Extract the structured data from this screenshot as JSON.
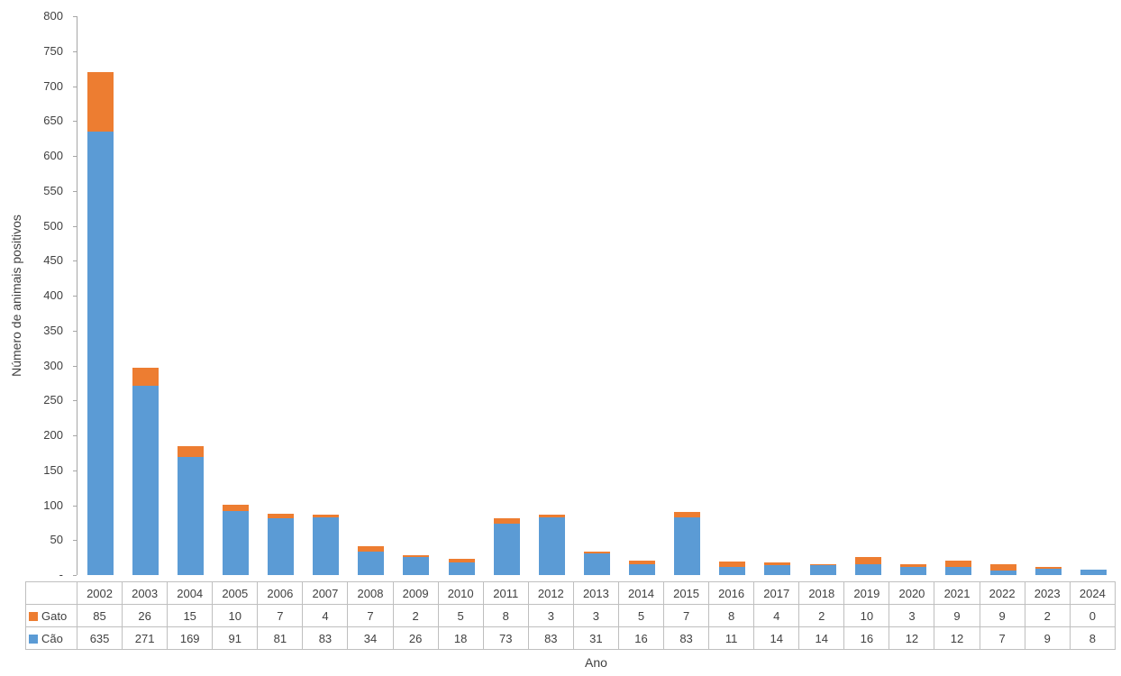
{
  "chart_data": {
    "type": "bar",
    "stacked": true,
    "title": "",
    "xlabel": "Ano",
    "ylabel": "Número de animais positivos",
    "ylim": [
      0,
      800
    ],
    "ytick_step": 50,
    "ytick_labels": [
      "800",
      "750",
      "700",
      "650",
      "600",
      "550",
      "500",
      "450",
      "400",
      "350",
      "300",
      "250",
      "200",
      "150",
      "100",
      "50",
      "-"
    ],
    "grid": false,
    "legend_position": "table-left",
    "categories": [
      "2002",
      "2003",
      "2004",
      "2005",
      "2006",
      "2007",
      "2008",
      "2009",
      "2010",
      "2011",
      "2012",
      "2013",
      "2014",
      "2015",
      "2016",
      "2017",
      "2018",
      "2019",
      "2020",
      "2021",
      "2022",
      "2023",
      "2024"
    ],
    "series": [
      {
        "name": "Gato",
        "color": "#ED7D31",
        "values": [
          85,
          26,
          15,
          10,
          7,
          4,
          7,
          2,
          5,
          8,
          3,
          3,
          5,
          7,
          8,
          4,
          2,
          10,
          3,
          9,
          9,
          2,
          0
        ]
      },
      {
        "name": "Cão",
        "color": "#5B9BD5",
        "values": [
          635,
          271,
          169,
          91,
          81,
          83,
          34,
          26,
          18,
          73,
          83,
          31,
          16,
          83,
          11,
          14,
          14,
          16,
          12,
          12,
          7,
          9,
          8
        ]
      }
    ]
  },
  "colors": {
    "axis_line": "#a6a6a6",
    "table_border": "#bfbfbf",
    "text": "#404040"
  }
}
